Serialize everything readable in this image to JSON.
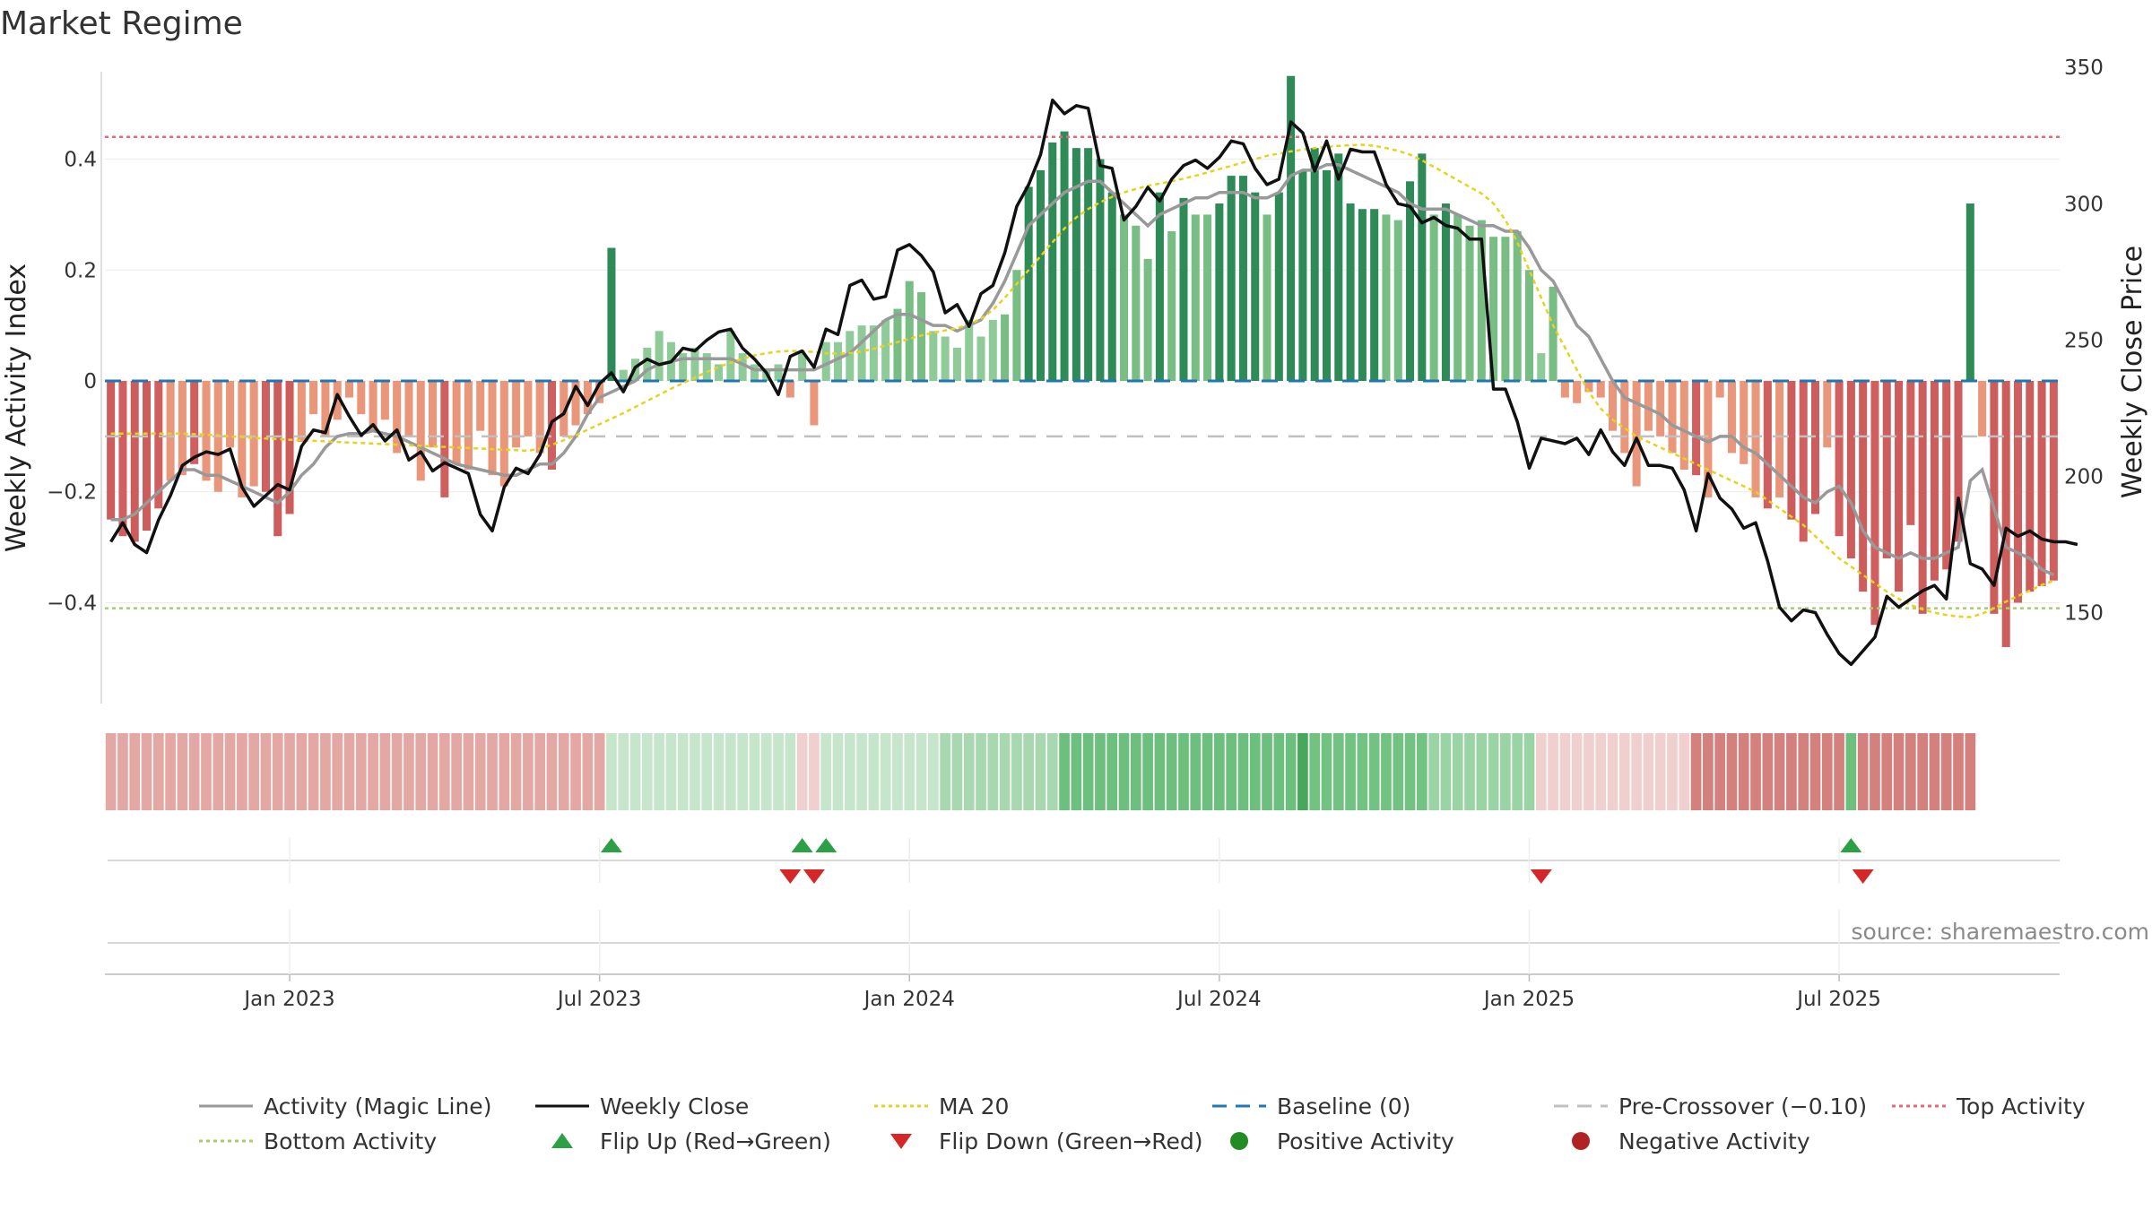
{
  "chart_data": {
    "type": "bar",
    "title": "Market Regime",
    "ylabel_left": "Weekly Activity Index",
    "ylabel_right": "Weekly Close Price",
    "y_left_ticks": [
      {
        "v": 0.4,
        "label": "0.4"
      },
      {
        "v": 0.2,
        "label": "0.2"
      },
      {
        "v": 0.0,
        "label": "0"
      },
      {
        "v": -0.2,
        "label": "−0.2"
      },
      {
        "v": -0.4,
        "label": "−0.4"
      }
    ],
    "y_right_ticks": [
      {
        "v": 350,
        "label": "350"
      },
      {
        "v": 300,
        "label": "300"
      },
      {
        "v": 250,
        "label": "250"
      },
      {
        "v": 200,
        "label": "200"
      },
      {
        "v": 150,
        "label": "150"
      }
    ],
    "ylim_left": [
      -0.59,
      0.59
    ],
    "ylim_right": [
      115,
      355
    ],
    "x_ticks": [
      {
        "week": 15,
        "label": "Jan 2023"
      },
      {
        "week": 41,
        "label": "Jul 2023"
      },
      {
        "week": 67,
        "label": "Jan 2024"
      },
      {
        "week": 93,
        "label": "Jul 2024"
      },
      {
        "week": 119,
        "label": "Jan 2025"
      },
      {
        "week": 145,
        "label": "Jul 2025"
      }
    ],
    "reference_lines": {
      "baseline": 0,
      "pre_crossover": -0.1,
      "top_activity": 0.44,
      "bottom_activity": -0.41
    },
    "activity_bars": [
      -0.25,
      -0.28,
      -0.29,
      -0.27,
      -0.23,
      -0.18,
      -0.17,
      -0.15,
      -0.18,
      -0.2,
      -0.12,
      -0.21,
      -0.19,
      -0.2,
      -0.28,
      -0.24,
      -0.11,
      -0.06,
      -0.1,
      -0.07,
      -0.03,
      -0.06,
      -0.09,
      -0.07,
      -0.13,
      -0.1,
      -0.18,
      -0.12,
      -0.21,
      -0.15,
      -0.16,
      -0.09,
      -0.17,
      -0.19,
      -0.12,
      -0.1,
      -0.13,
      -0.16,
      -0.1,
      -0.08,
      -0.06,
      -0.04,
      0.24,
      0.02,
      0.04,
      0.06,
      0.09,
      0.07,
      0.05,
      0.06,
      0.05,
      0.03,
      0.09,
      0.05,
      0.03,
      0.02,
      0.03,
      -0.03,
      0.05,
      -0.08,
      0.07,
      0.07,
      0.09,
      0.1,
      0.1,
      0.11,
      0.13,
      0.18,
      0.16,
      0.09,
      0.08,
      0.06,
      0.11,
      0.08,
      0.11,
      0.12,
      0.2,
      0.35,
      0.38,
      0.43,
      0.45,
      0.42,
      0.42,
      0.4,
      0.34,
      0.3,
      0.28,
      0.22,
      0.34,
      0.27,
      0.33,
      0.3,
      0.3,
      0.32,
      0.37,
      0.37,
      0.34,
      0.3,
      0.34,
      0.55,
      0.38,
      0.42,
      0.38,
      0.41,
      0.32,
      0.31,
      0.31,
      0.3,
      0.29,
      0.36,
      0.41,
      0.3,
      0.32,
      0.3,
      0.28,
      0.29,
      0.26,
      0.26,
      0.27,
      0.2,
      0.05,
      0.17,
      -0.03,
      -0.04,
      -0.02,
      -0.03,
      -0.09,
      -0.13,
      -0.19,
      -0.09,
      -0.1,
      -0.13,
      -0.16,
      -0.17,
      -0.21,
      -0.03,
      -0.13,
      -0.15,
      -0.21,
      -0.23,
      -0.21,
      -0.25,
      -0.29,
      -0.24,
      -0.12,
      -0.28,
      -0.32,
      -0.38,
      -0.44,
      -0.32,
      -0.38,
      -0.26,
      -0.42,
      -0.36,
      -0.34,
      -0.29,
      0.32,
      -0.1,
      -0.42,
      -0.48,
      -0.4,
      -0.38,
      -0.37,
      -0.36
    ],
    "magic_line": [
      -0.25,
      -0.25,
      -0.24,
      -0.22,
      -0.2,
      -0.18,
      -0.16,
      -0.16,
      -0.17,
      -0.17,
      -0.18,
      -0.19,
      -0.2,
      -0.21,
      -0.22,
      -0.2,
      -0.17,
      -0.15,
      -0.12,
      -0.1,
      -0.095,
      -0.095,
      -0.09,
      -0.095,
      -0.1,
      -0.11,
      -0.12,
      -0.13,
      -0.14,
      -0.15,
      -0.155,
      -0.16,
      -0.165,
      -0.17,
      -0.17,
      -0.16,
      -0.15,
      -0.15,
      -0.13,
      -0.1,
      -0.06,
      -0.03,
      -0.02,
      -0.01,
      0.0,
      0.02,
      0.03,
      0.035,
      0.04,
      0.04,
      0.04,
      0.04,
      0.04,
      0.03,
      0.02,
      0.02,
      0.02,
      0.02,
      0.02,
      0.02,
      0.03,
      0.04,
      0.05,
      0.07,
      0.09,
      0.11,
      0.12,
      0.12,
      0.11,
      0.1,
      0.1,
      0.09,
      0.1,
      0.11,
      0.14,
      0.18,
      0.23,
      0.28,
      0.3,
      0.32,
      0.34,
      0.35,
      0.36,
      0.36,
      0.34,
      0.32,
      0.3,
      0.28,
      0.3,
      0.31,
      0.32,
      0.33,
      0.33,
      0.34,
      0.34,
      0.34,
      0.33,
      0.33,
      0.34,
      0.37,
      0.38,
      0.38,
      0.39,
      0.39,
      0.38,
      0.37,
      0.36,
      0.35,
      0.34,
      0.32,
      0.31,
      0.31,
      0.31,
      0.3,
      0.29,
      0.28,
      0.28,
      0.27,
      0.27,
      0.24,
      0.2,
      0.18,
      0.14,
      0.1,
      0.08,
      0.04,
      0.0,
      -0.03,
      -0.04,
      -0.05,
      -0.06,
      -0.08,
      -0.09,
      -0.1,
      -0.11,
      -0.1,
      -0.1,
      -0.12,
      -0.13,
      -0.15,
      -0.17,
      -0.19,
      -0.21,
      -0.22,
      -0.2,
      -0.19,
      -0.22,
      -0.27,
      -0.3,
      -0.31,
      -0.32,
      -0.31,
      -0.32,
      -0.32,
      -0.31,
      -0.3,
      -0.18,
      -0.16,
      -0.23,
      -0.3,
      -0.31,
      -0.32,
      -0.34,
      -0.35
    ],
    "ma20": [
      -0.095,
      -0.095,
      -0.095,
      -0.095,
      -0.095,
      -0.095,
      -0.095,
      -0.096,
      -0.097,
      -0.098,
      -0.1,
      -0.101,
      -0.103,
      -0.104,
      -0.105,
      -0.106,
      -0.107,
      -0.108,
      -0.109,
      -0.11,
      -0.111,
      -0.112,
      -0.113,
      -0.114,
      -0.115,
      -0.116,
      -0.117,
      -0.118,
      -0.119,
      -0.12,
      -0.121,
      -0.122,
      -0.123,
      -0.124,
      -0.125,
      -0.126,
      -0.122,
      -0.115,
      -0.107,
      -0.098,
      -0.088,
      -0.078,
      -0.068,
      -0.058,
      -0.047,
      -0.036,
      -0.025,
      -0.014,
      -0.004,
      0.006,
      0.016,
      0.025,
      0.033,
      0.04,
      0.046,
      0.05,
      0.053,
      0.054,
      0.054,
      0.052,
      0.05,
      0.049,
      0.05,
      0.053,
      0.058,
      0.064,
      0.07,
      0.076,
      0.082,
      0.087,
      0.091,
      0.095,
      0.102,
      0.112,
      0.128,
      0.15,
      0.175,
      0.2,
      0.225,
      0.25,
      0.275,
      0.295,
      0.31,
      0.322,
      0.332,
      0.34,
      0.346,
      0.352,
      0.356,
      0.36,
      0.365,
      0.37,
      0.376,
      0.382,
      0.388,
      0.394,
      0.4,
      0.406,
      0.41,
      0.414,
      0.417,
      0.42,
      0.422,
      0.424,
      0.425,
      0.426,
      0.424,
      0.42,
      0.415,
      0.408,
      0.398,
      0.386,
      0.374,
      0.362,
      0.35,
      0.338,
      0.32,
      0.29,
      0.25,
      0.2,
      0.15,
      0.1,
      0.06,
      0.02,
      -0.02,
      -0.05,
      -0.07,
      -0.085,
      -0.1,
      -0.11,
      -0.12,
      -0.13,
      -0.14,
      -0.15,
      -0.16,
      -0.17,
      -0.18,
      -0.19,
      -0.2,
      -0.215,
      -0.23,
      -0.245,
      -0.26,
      -0.28,
      -0.3,
      -0.32,
      -0.335,
      -0.35,
      -0.365,
      -0.38,
      -0.393,
      -0.404,
      -0.412,
      -0.418,
      -0.422,
      -0.425,
      -0.426,
      -0.42,
      -0.41,
      -0.398,
      -0.388,
      -0.378,
      -0.368,
      -0.36
    ],
    "weekly_close": [
      176,
      183,
      175,
      172,
      184,
      193,
      204,
      207,
      209,
      208,
      210,
      196,
      189,
      193,
      197,
      195,
      211,
      217,
      216,
      230,
      222,
      215,
      219,
      213,
      217,
      206,
      209,
      202,
      205,
      203,
      201,
      186,
      180,
      196,
      203,
      201,
      208,
      220,
      223,
      233,
      226,
      234,
      238,
      231,
      240,
      243,
      241,
      242,
      247,
      246,
      250,
      253,
      254,
      247,
      243,
      238,
      230,
      244,
      246,
      240,
      254,
      252,
      270,
      272,
      265,
      266,
      283,
      285,
      281,
      275,
      260,
      263,
      255,
      267,
      270,
      282,
      299,
      307,
      318,
      338,
      333,
      336,
      335,
      314,
      313,
      294,
      299,
      306,
      301,
      309,
      314,
      316,
      313,
      317,
      323,
      322,
      313,
      307,
      309,
      330,
      326,
      312,
      323,
      309,
      320,
      319,
      319,
      307,
      300,
      299,
      293,
      295,
      292,
      291,
      287,
      287,
      232,
      232,
      220,
      203,
      214,
      213,
      212,
      214,
      208,
      217,
      209,
      204,
      214,
      204,
      204,
      203,
      195,
      180,
      201,
      192,
      188,
      181,
      183,
      169,
      152,
      147,
      151,
      150,
      142,
      135,
      131,
      136,
      141,
      156,
      152,
      155,
      158,
      160,
      155,
      192,
      168,
      166,
      160,
      181,
      178,
      180,
      177,
      176,
      176,
      175
    ],
    "strip": [
      {
        "from": 0,
        "to": 42,
        "color": "#e3a8a4"
      },
      {
        "from": 42,
        "to": 58,
        "color": "#c6e6cc"
      },
      {
        "from": 58,
        "to": 60,
        "color": "#f0d0ce"
      },
      {
        "from": 60,
        "to": 70,
        "color": "#c6e6cc"
      },
      {
        "from": 70,
        "to": 80,
        "color": "#a8d8b0"
      },
      {
        "from": 80,
        "to": 100,
        "color": "#6cbf7c"
      },
      {
        "from": 100,
        "to": 101,
        "color": "#45a85a"
      },
      {
        "from": 101,
        "to": 111,
        "color": "#72c282"
      },
      {
        "from": 111,
        "to": 120,
        "color": "#9ad3a4"
      },
      {
        "from": 120,
        "to": 133,
        "color": "#f0d0ce"
      },
      {
        "from": 133,
        "to": 146,
        "color": "#d4807c"
      },
      {
        "from": 146,
        "to": 147,
        "color": "#6cbf7c"
      },
      {
        "from": 147,
        "to": 157,
        "color": "#d4807c"
      }
    ],
    "flip_up": [
      42,
      58,
      60,
      146
    ],
    "flip_down": [
      57,
      59,
      120,
      147
    ],
    "legend": [
      {
        "key": "magic",
        "label": "Activity (Magic Line)",
        "color": "#999999"
      },
      {
        "key": "close",
        "label": "Weekly Close",
        "color": "#111111"
      },
      {
        "key": "ma20",
        "label": "MA 20",
        "color": "#e8d21c"
      },
      {
        "key": "baseline",
        "label": "Baseline (0)",
        "color": "#1f77b4"
      },
      {
        "key": "precross",
        "label": "Pre-Crossover (−0.10)",
        "color": "#c0c0c0"
      },
      {
        "key": "top",
        "label": "Top Activity",
        "color": "#e06c75"
      },
      {
        "key": "bottom",
        "label": "Bottom Activity",
        "color": "#a3d06b"
      },
      {
        "key": "flipup",
        "label": "Flip Up (Red→Green)",
        "color": "#2ca044"
      },
      {
        "key": "flipdown",
        "label": "Flip Down (Green→Red)",
        "color": "#d62728"
      },
      {
        "key": "pos",
        "label": "Positive Activity",
        "color": "#228b22"
      },
      {
        "key": "neg",
        "label": "Negative Activity",
        "color": "#b22222"
      }
    ],
    "source": "source: sharemaestro.com"
  }
}
